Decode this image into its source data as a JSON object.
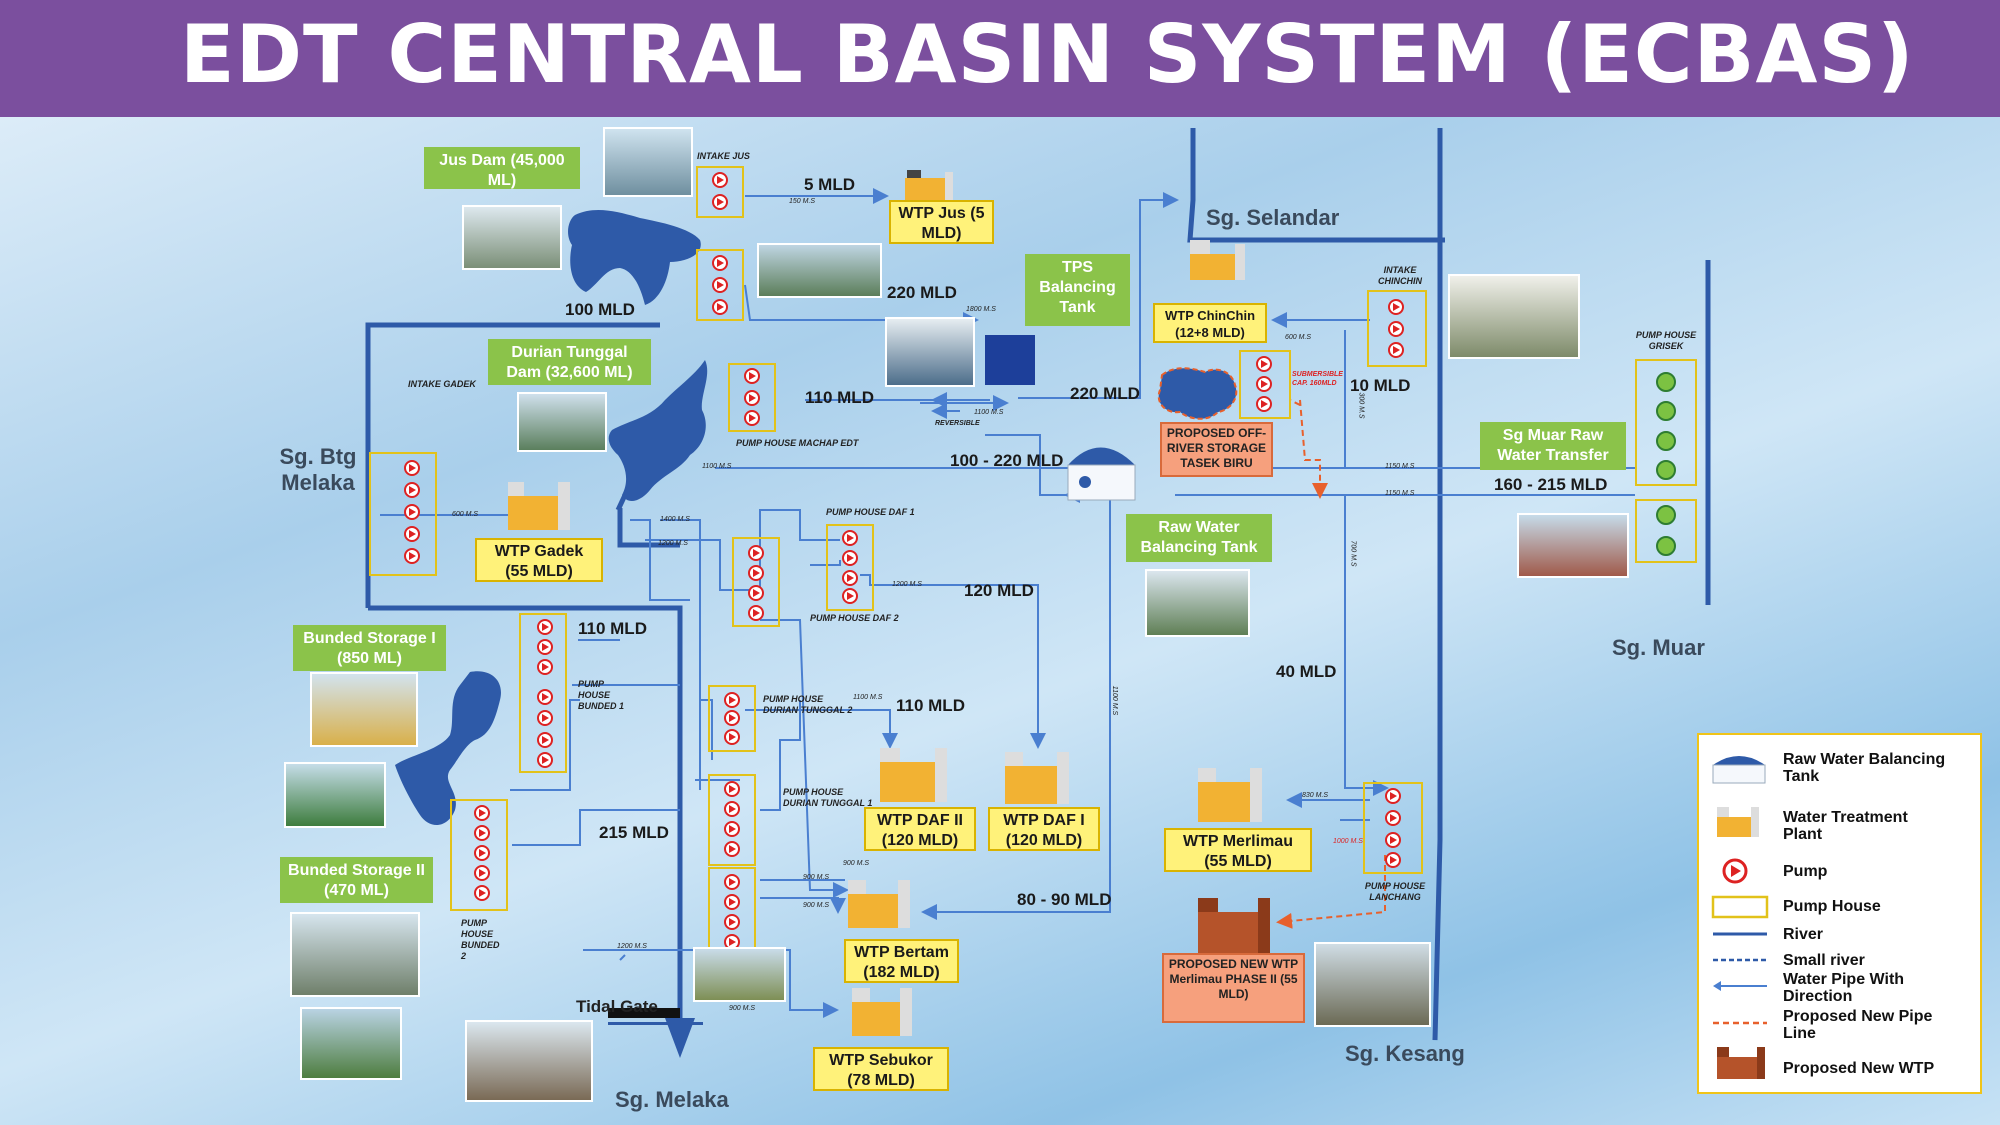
{
  "title": "EDT CENTRAL BASIN SYSTEM (ECBAS)",
  "rivers": {
    "selandar": "Sg. Selandar",
    "btg_melaka": "Sg. Btg Melaka",
    "muar": "Sg. Muar",
    "kesang": "Sg. Kesang",
    "melaka": "Sg. Melaka",
    "tidal_gate": "Tidal Gate"
  },
  "green_boxes": {
    "jus_dam": "Jus Dam (45,000 ML)",
    "tps_tank": "TPS Balancing Tank",
    "durian_dam": "Durian Tunggal Dam (32,600 ML)",
    "bunded1": "Bunded Storage I (850 ML)",
    "bunded2": "Bunded Storage II (470 ML)",
    "raw_tank": "Raw Water Balancing Tank",
    "muar_transfer": "Sg Muar Raw Water Transfer"
  },
  "wtp": {
    "jus": "WTP Jus (5 MLD)",
    "chinchin": "WTP ChinChin (12+8 MLD)",
    "gadek": "WTP Gadek (55 MLD)",
    "daf2": "WTP DAF II (120 MLD)",
    "daf1": "WTP DAF I (120 MLD)",
    "merlimau": "WTP Merlimau (55 MLD)",
    "bertam": "WTP Bertam (182 MLD)",
    "sebukor": "WTP Sebukor (78 MLD)"
  },
  "orange_boxes": {
    "tasek_biru": "PROPOSED OFF-RIVER STORAGE TASEK BIRU",
    "merlimau2": "PROPOSED NEW WTP Merlimau PHASE II (55 MLD)"
  },
  "flows": {
    "f5": "5 MLD",
    "f220a": "220 MLD",
    "f100": "100 MLD",
    "f110a": "110 MLD",
    "f220b": "220 MLD",
    "f10": "10 MLD",
    "f100_220": "100 - 220 MLD",
    "f160_215": "160 - 215 MLD",
    "f120": "120 MLD",
    "f110b": "110 MLD",
    "f110c": "110 MLD",
    "f215": "215 MLD",
    "f40": "40 MLD",
    "f80_90": "80 - 90 MLD"
  },
  "small_labels": {
    "intake_jus": "INTAKE JUS",
    "intake_gadek": "INTAKE GADEK",
    "intake_chinchin": "INTAKE CHINCHIN",
    "ph_grisek": "PUMP HOUSE GRISEK",
    "ph_machap": "PUMP HOUSE MACHAP EDT",
    "ph_daf1": "PUMP HOUSE DAF 1",
    "ph_daf2": "PUMP HOUSE DAF 2",
    "ph_bunded1": "PUMP HOUSE BUNDED 1",
    "ph_bunded2": "PUMP HOUSE BUNDED 2",
    "ph_dt2": "PUMP HOUSE DURIAN TUNGGAL 2",
    "ph_dt1": "PUMP HOUSE DURIAN TUNGGAL 1",
    "ph_lanchang": "PUMP HOUSE LANCHANG",
    "reversible": "REVERSIBLE",
    "submersible": "SUBMERSIBLE CAP. 160MLD"
  },
  "pipe_sizes": {
    "p150": "150 M.S",
    "p1800": "1800 M.S",
    "p1100a": "1100 M.S",
    "p1100b": "1100 M.S",
    "p600a": "600 M.S",
    "p600b": "600 M.S",
    "p1400": "1400 M.S",
    "p1200a": "1200 M.S",
    "p1200b": "1200 M.S",
    "p1150a": "1150 M.S",
    "p1150b": "1150 M.S",
    "p300": "300 M.S",
    "p700": "700 M.S",
    "p1100c": "1100 M.S",
    "p1100d": "1100 M.S",
    "p900a": "900 M.S",
    "p900b": "900 M.S",
    "p900c": "900 M.S",
    "p830": "830 M.S",
    "p1000": "1000 M.S",
    "p1200c": "1200 M.S"
  },
  "legend": {
    "raw_tank": "Raw Water Balancing Tank",
    "wtp": "Water Treatment Plant",
    "pump": "Pump",
    "pump_house": "Pump House",
    "river": "River",
    "small_river": "Small river",
    "pipe": "Water Pipe With Direction",
    "proposed_pipe": "Proposed New Pipe Line",
    "proposed_wtp": "Proposed New WTP"
  },
  "colors": {
    "header": "#7b4f9e",
    "river": "#2e5aa8",
    "pipe": "#4a7fd0",
    "proposed": "#e8602c",
    "green": "#8bc34a",
    "yellow": "#fff27a"
  }
}
